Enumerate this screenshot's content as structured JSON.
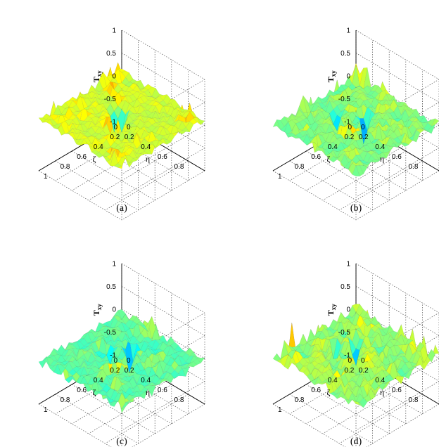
{
  "chart_data": [
    {
      "type": "surface3d",
      "caption": "(a)",
      "zlabel": "T",
      "zlabel_sub": "xy",
      "xlabel": "ζ",
      "ylabel": "η",
      "x_ticks": [
        "0",
        "0.2",
        "0.4",
        "0.6",
        "0.8",
        "1"
      ],
      "y_ticks": [
        "0",
        "0.2",
        "0.4",
        "0.6",
        "0.8"
      ],
      "z_ticks": [
        "-1",
        "-0.5",
        "0",
        "0.5",
        "1"
      ],
      "xlim": [
        0,
        1
      ],
      "ylim": [
        0,
        1
      ],
      "zlim": [
        -1,
        1
      ],
      "grid": true,
      "surface_description": "mostly yellow-orange surface with red peaks near center, z up to ~0.6",
      "peaks": [
        {
          "x": 0.62,
          "y": 0.48,
          "z": 0.6
        },
        {
          "x": 0.58,
          "y": 0.52,
          "z": 0.5
        },
        {
          "x": 0.55,
          "y": 0.5,
          "z": 0.42
        },
        {
          "x": 0.3,
          "y": 0.3,
          "z": 0.25
        }
      ],
      "troughs": [
        {
          "x": 0.45,
          "y": 0.35,
          "z": -0.45
        },
        {
          "x": 0.4,
          "y": 0.42,
          "z": -0.35
        }
      ]
    },
    {
      "type": "surface3d",
      "caption": "(b)",
      "zlabel": "T",
      "zlabel_sub": "xy",
      "xlabel": "ζ",
      "ylabel": "η",
      "x_ticks": [
        "0",
        "0.2",
        "0.4",
        "0.6",
        "0.8",
        "1"
      ],
      "y_ticks": [
        "0",
        "0.2",
        "0.4",
        "0.6",
        "0.8"
      ],
      "z_ticks": [
        "-1",
        "-0.5",
        "0",
        "0.5",
        "1"
      ],
      "xlim": [
        0,
        1
      ],
      "ylim": [
        0,
        1
      ],
      "zlim": [
        -1,
        1
      ],
      "grid": true,
      "surface_description": "yellow-green surface with red peaks near center and cyan troughs",
      "peaks": [
        {
          "x": 0.62,
          "y": 0.5,
          "z": 0.6
        },
        {
          "x": 0.58,
          "y": 0.55,
          "z": 0.45
        }
      ],
      "troughs": [
        {
          "x": 0.35,
          "y": 0.45,
          "z": -0.65
        },
        {
          "x": 0.5,
          "y": 0.25,
          "z": -0.5
        }
      ]
    },
    {
      "type": "surface3d",
      "caption": "(c)",
      "zlabel": "T",
      "zlabel_sub": "xy",
      "xlabel": "ζ",
      "ylabel": "η",
      "x_ticks": [
        "0",
        "0.2",
        "0.4",
        "0.6",
        "0.8",
        "1"
      ],
      "y_ticks": [
        "0",
        "0.2",
        "0.4",
        "0.6",
        "0.8"
      ],
      "z_ticks": [
        "-1",
        "-0.5",
        "0",
        "0.5",
        "1"
      ],
      "xlim": [
        0,
        1
      ],
      "ylim": [
        0,
        1
      ],
      "zlim": [
        -1,
        1
      ],
      "grid": true,
      "surface_description": "green-cyan surface with orange peaks near center and cyan troughs",
      "peaks": [
        {
          "x": 0.62,
          "y": 0.52,
          "z": 0.55
        },
        {
          "x": 0.55,
          "y": 0.58,
          "z": 0.35
        }
      ],
      "troughs": [
        {
          "x": 0.3,
          "y": 0.4,
          "z": -0.7
        },
        {
          "x": 0.45,
          "y": 0.3,
          "z": -0.55
        }
      ]
    },
    {
      "type": "surface3d",
      "caption": "(d)",
      "zlabel": "T",
      "zlabel_sub": "xy",
      "xlabel": "ζ",
      "ylabel": "η",
      "x_ticks": [
        "0",
        "0.2",
        "0.4",
        "0.6",
        "0.8",
        "1"
      ],
      "y_ticks": [
        "0",
        "0.2",
        "0.4",
        "0.6",
        "0.8"
      ],
      "z_ticks": [
        "-1",
        "-0.5",
        "0",
        "0.5",
        "1"
      ],
      "xlim": [
        0,
        1
      ],
      "ylim": [
        0,
        1
      ],
      "zlim": [
        -1,
        1
      ],
      "grid": true,
      "surface_description": "mixed yellow-orange and green-cyan surface with red peaks at center and right edge",
      "peaks": [
        {
          "x": 0.6,
          "y": 0.5,
          "z": 0.55
        },
        {
          "x": 0.9,
          "y": 0.15,
          "z": 0.5
        },
        {
          "x": 0.5,
          "y": 0.65,
          "z": 0.45
        }
      ],
      "troughs": [
        {
          "x": 0.35,
          "y": 0.35,
          "z": -0.6
        },
        {
          "x": 0.5,
          "y": 0.25,
          "z": -0.4
        }
      ]
    }
  ]
}
